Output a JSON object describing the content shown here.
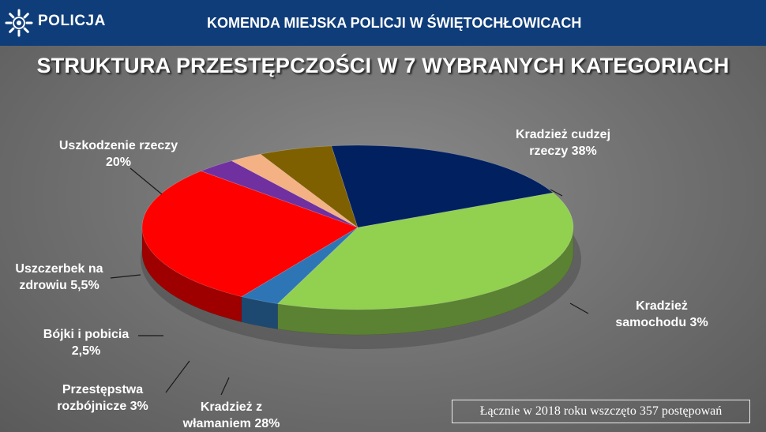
{
  "header": {
    "logo_text": "POLICJA",
    "title": "KOMENDA MIEJSKA POLICJI W ŚWIĘTOCHŁOWICACH",
    "bar_color": "#0f3d7a",
    "logo_icon": "police-star-icon"
  },
  "slide_title": "STRUKTURA PRZESTĘPCZOŚCI W 7 WYBRANYCH KATEGORIACH",
  "note": "Łącznie w 2018 roku wszczęto 357 postępowań",
  "chart_data": {
    "type": "pie",
    "title": "STRUKTURA PRZESTĘPCZOŚCI W 7 WYBRANYCH KATEGORIACH",
    "categories": [
      "Kradzież cudzej rzeczy",
      "Kradzież samochodu",
      "Kradzież z włamaniem",
      "Przestępstwa rozbójnicze",
      "Bójki i pobicia",
      "Uszczerbek na zdrowiu",
      "Uszkodzenie rzeczy"
    ],
    "values": [
      38,
      3,
      28,
      3,
      2.5,
      5.5,
      20
    ],
    "unit": "%",
    "colors": [
      "#92d050",
      "#2e75b6",
      "#ff0000",
      "#7030a0",
      "#f4b183",
      "#7f6000",
      "#002060"
    ],
    "labels": [
      [
        "Kradzież cudzej",
        "rzeczy 38%"
      ],
      [
        "Kradzież",
        "samochodu 3%"
      ],
      [
        "Kradzież z",
        "włamaniem 28%"
      ],
      [
        "Przestępstwa",
        "rozbójnicze 3%"
      ],
      [
        "Bójki i pobicia",
        "2,5%"
      ],
      [
        "Uszczerbek na",
        "zdrowiu 5,5%"
      ],
      [
        "Uszkodzenie rzeczy",
        "20%"
      ]
    ],
    "legend": "none",
    "grid": false
  }
}
